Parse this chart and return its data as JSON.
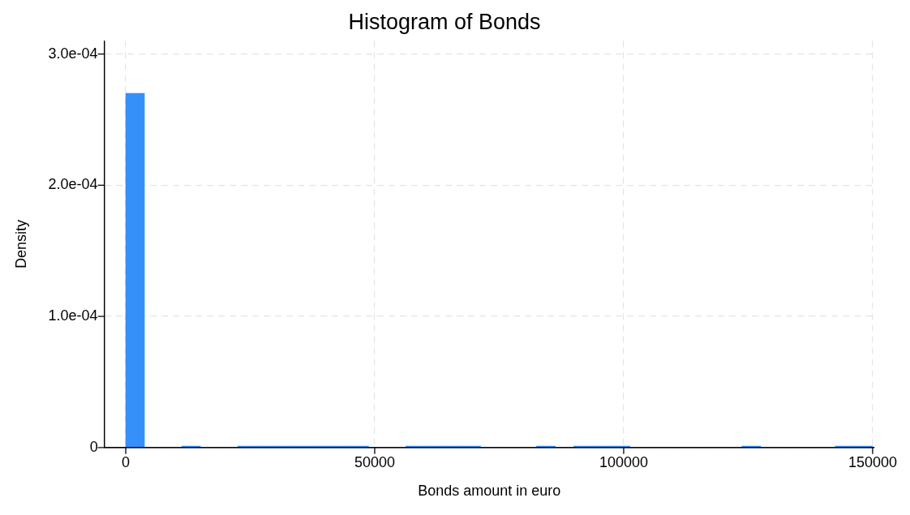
{
  "chart_data": {
    "type": "histogram",
    "title": "Histogram of Bonds",
    "xlabel": "Bonds amount in euro",
    "ylabel": "Density",
    "color": "#3590fa",
    "bins": [
      0,
      3750,
      7500,
      11250,
      15000,
      18750,
      22500,
      26250,
      30000,
      33750,
      37500,
      41250,
      45000,
      48750,
      52500,
      56250,
      60000,
      63750,
      67500,
      71250,
      75000,
      78750,
      82500,
      86250,
      90000,
      93750,
      97500,
      101250,
      105000,
      108750,
      112500,
      116250,
      120000,
      123750,
      127500,
      131250,
      135000,
      138750,
      142500,
      146250,
      150000
    ],
    "values": [
      0.00027,
      0,
      0,
      1e-06,
      0,
      0,
      1e-06,
      1e-06,
      1e-06,
      1e-06,
      1e-06,
      1e-06,
      1e-06,
      0,
      0,
      1e-06,
      1e-06,
      1e-06,
      1e-06,
      0,
      0,
      0,
      1e-06,
      0,
      1e-06,
      1e-06,
      1e-06,
      0,
      0,
      0,
      0,
      0,
      0,
      1e-06,
      0,
      0,
      0,
      0,
      1e-06,
      1e-06
    ],
    "xlim": [
      -4300,
      150300
    ],
    "xticks": [
      0,
      50000,
      100000,
      150000
    ],
    "ylim": [
      0,
      0.00031
    ],
    "yticks": [
      0,
      {
        "value": 0.0001,
        "label": "1.0e-04"
      },
      {
        "value": 0.0002,
        "label": "2.0e-04"
      },
      {
        "value": 0.0003,
        "label": "3.0e-04"
      }
    ],
    "grid": true
  }
}
